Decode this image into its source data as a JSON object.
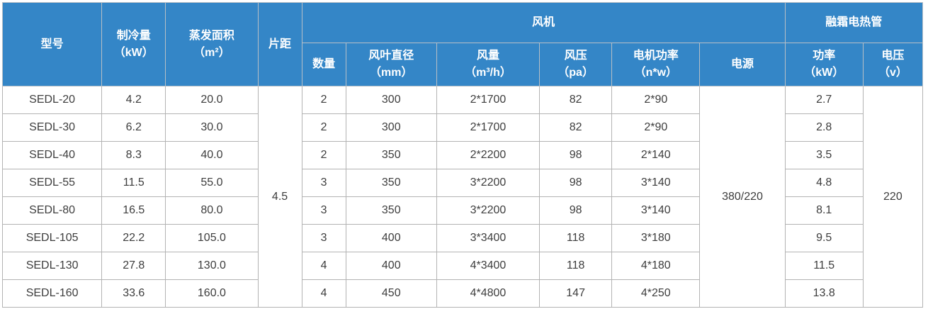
{
  "colors": {
    "header_bg": "#3486c7",
    "header_text": "#ffffff",
    "body_text": "#3d3d3d",
    "border": "#b3b3b3"
  },
  "table": {
    "header": {
      "model": "型号",
      "cooling": {
        "line1": "制冷量",
        "line2": "（kW）"
      },
      "evap_area": {
        "line1": "蒸发面积",
        "line2": "（m²）"
      },
      "fin_spacing": "片距",
      "fan_group": "风机",
      "defrost_group": "融霜电热管",
      "fan_qty": "数量",
      "blade_diameter": {
        "line1": "风叶直径",
        "line2": "（mm）"
      },
      "airflow": {
        "line1": "风量",
        "line2": "（m³/h）"
      },
      "air_pressure": {
        "line1": "风压",
        "line2": "（pa）"
      },
      "motor_power": {
        "line1": "电机功率",
        "line2": "（n*w）"
      },
      "power_supply": "电源",
      "heater_power": {
        "line1": "功率",
        "line2": "（kW）"
      },
      "voltage": {
        "line1": "电压",
        "line2": "（v）"
      }
    },
    "merged": {
      "fin_spacing": "4.5",
      "power_supply": "380/220",
      "voltage": "220"
    },
    "rows": [
      {
        "model": "SEDL-20",
        "cooling": "4.2",
        "evap": "20.0",
        "qty": "2",
        "blade": "300",
        "airflow": "2*1700",
        "pressure": "82",
        "motor": "2*90",
        "heater": "2.7"
      },
      {
        "model": "SEDL-30",
        "cooling": "6.2",
        "evap": "30.0",
        "qty": "2",
        "blade": "300",
        "airflow": "2*1700",
        "pressure": "82",
        "motor": "2*90",
        "heater": "2.8"
      },
      {
        "model": "SEDL-40",
        "cooling": "8.3",
        "evap": "40.0",
        "qty": "2",
        "blade": "350",
        "airflow": "2*2200",
        "pressure": "98",
        "motor": "2*140",
        "heater": "3.5"
      },
      {
        "model": "SEDL-55",
        "cooling": "11.5",
        "evap": "55.0",
        "qty": "3",
        "blade": "350",
        "airflow": "3*2200",
        "pressure": "98",
        "motor": "3*140",
        "heater": "4.8"
      },
      {
        "model": "SEDL-80",
        "cooling": "16.5",
        "evap": "80.0",
        "qty": "3",
        "blade": "350",
        "airflow": "3*2200",
        "pressure": "98",
        "motor": "3*140",
        "heater": "8.1"
      },
      {
        "model": "SEDL-105",
        "cooling": "22.2",
        "evap": "105.0",
        "qty": "3",
        "blade": "400",
        "airflow": "3*3400",
        "pressure": "118",
        "motor": "3*180",
        "heater": "9.5"
      },
      {
        "model": "SEDL-130",
        "cooling": "27.8",
        "evap": "130.0",
        "qty": "4",
        "blade": "400",
        "airflow": "4*3400",
        "pressure": "118",
        "motor": "4*180",
        "heater": "11.5"
      },
      {
        "model": "SEDL-160",
        "cooling": "33.6",
        "evap": "160.0",
        "qty": "4",
        "blade": "450",
        "airflow": "4*4800",
        "pressure": "147",
        "motor": "4*250",
        "heater": "13.8"
      }
    ]
  }
}
